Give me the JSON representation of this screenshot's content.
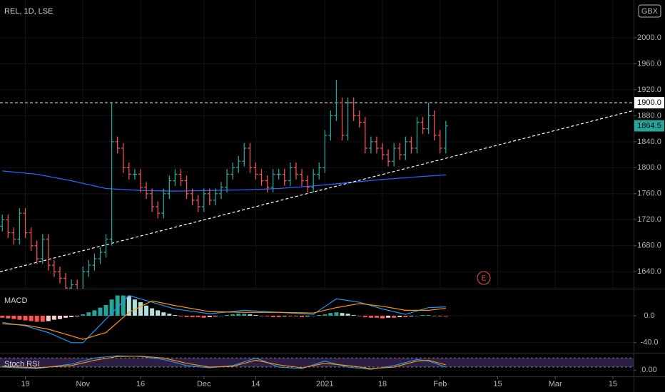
{
  "chart_data": [
    {
      "type": "ohlc",
      "title": "REL, 1D, LSE",
      "currency": "GBX",
      "x": [
        0,
        1,
        2,
        3,
        4,
        5,
        6,
        7,
        8,
        9,
        10,
        11,
        12,
        13,
        14,
        15,
        16,
        17,
        18,
        19,
        20,
        21,
        22,
        23,
        24,
        25,
        26,
        27,
        28,
        29,
        30,
        31,
        32,
        33,
        34,
        35,
        36,
        37,
        38,
        39,
        40,
        41,
        42,
        43,
        44,
        45,
        46,
        47,
        48,
        49,
        50,
        51,
        52,
        53,
        54,
        55,
        56,
        57,
        58,
        59,
        60,
        61,
        62,
        63,
        64,
        65,
        66,
        67,
        68,
        69,
        70,
        71,
        72,
        73,
        74,
        75,
        76,
        77
      ],
      "open": [
        1710,
        1720,
        1700,
        1690,
        1730,
        1700,
        1680,
        1660,
        1690,
        1650,
        1640,
        1630,
        1615,
        1620,
        1610,
        1640,
        1650,
        1660,
        1670,
        1690,
        1840,
        1830,
        1800,
        1790,
        1790,
        1770,
        1760,
        1740,
        1730,
        1760,
        1780,
        1790,
        1780,
        1760,
        1750,
        1740,
        1760,
        1750,
        1760,
        1770,
        1790,
        1800,
        1810,
        1830,
        1800,
        1790,
        1780,
        1770,
        1790,
        1790,
        1780,
        1800,
        1790,
        1780,
        1770,
        1790,
        1800,
        1850,
        1880,
        1900,
        1850,
        1900,
        1880,
        1870,
        1830,
        1840,
        1830,
        1820,
        1810,
        1830,
        1820,
        1840,
        1830,
        1870,
        1860,
        1880,
        1850,
        1830
      ],
      "high": [
        1728,
        1728,
        1708,
        1738,
        1738,
        1708,
        1688,
        1698,
        1698,
        1658,
        1648,
        1638,
        1628,
        1628,
        1648,
        1658,
        1668,
        1678,
        1698,
        1900,
        1848,
        1838,
        1808,
        1798,
        1798,
        1778,
        1768,
        1748,
        1768,
        1788,
        1798,
        1798,
        1788,
        1768,
        1758,
        1768,
        1768,
        1768,
        1778,
        1798,
        1808,
        1818,
        1838,
        1838,
        1808,
        1798,
        1788,
        1798,
        1798,
        1798,
        1808,
        1808,
        1798,
        1788,
        1798,
        1808,
        1858,
        1888,
        1935,
        1908,
        1908,
        1908,
        1888,
        1878,
        1848,
        1848,
        1838,
        1828,
        1838,
        1838,
        1848,
        1848,
        1878,
        1878,
        1900,
        1888,
        1858,
        1872
      ],
      "low": [
        1702,
        1692,
        1682,
        1682,
        1692,
        1672,
        1652,
        1652,
        1642,
        1632,
        1622,
        1607,
        1607,
        1602,
        1602,
        1632,
        1642,
        1652,
        1662,
        1680,
        1822,
        1792,
        1782,
        1782,
        1762,
        1752,
        1732,
        1722,
        1722,
        1752,
        1772,
        1772,
        1752,
        1742,
        1732,
        1732,
        1742,
        1742,
        1752,
        1762,
        1782,
        1792,
        1802,
        1792,
        1782,
        1772,
        1762,
        1762,
        1782,
        1772,
        1772,
        1782,
        1772,
        1762,
        1762,
        1782,
        1792,
        1842,
        1872,
        1842,
        1842,
        1872,
        1862,
        1822,
        1822,
        1822,
        1812,
        1802,
        1802,
        1812,
        1812,
        1822,
        1822,
        1852,
        1852,
        1842,
        1822,
        1822
      ],
      "close": [
        1720,
        1700,
        1690,
        1730,
        1700,
        1680,
        1660,
        1690,
        1650,
        1640,
        1630,
        1615,
        1620,
        1610,
        1640,
        1650,
        1660,
        1670,
        1690,
        1840,
        1830,
        1800,
        1790,
        1790,
        1770,
        1760,
        1740,
        1730,
        1760,
        1780,
        1790,
        1780,
        1760,
        1750,
        1740,
        1760,
        1750,
        1760,
        1770,
        1790,
        1800,
        1810,
        1830,
        1800,
        1790,
        1780,
        1770,
        1790,
        1790,
        1780,
        1800,
        1790,
        1780,
        1770,
        1790,
        1800,
        1850,
        1880,
        1900,
        1850,
        1900,
        1880,
        1870,
        1830,
        1840,
        1830,
        1820,
        1810,
        1830,
        1820,
        1840,
        1830,
        1870,
        1860,
        1880,
        1850,
        1830,
        1864.5
      ],
      "up_color": "#26a69a",
      "down_color": "#ef5350",
      "xlim": [
        -0.4,
        109.6
      ],
      "xticks": [
        {
          "value": 4,
          "label": "19"
        },
        {
          "value": 14,
          "label": "Nov"
        },
        {
          "value": 24,
          "label": "16"
        },
        {
          "value": 35,
          "label": "Dec"
        },
        {
          "value": 44,
          "label": "14"
        },
        {
          "value": 56,
          "label": "2021"
        },
        {
          "value": 66,
          "label": "18"
        },
        {
          "value": 76,
          "label": "Feb"
        },
        {
          "value": 86,
          "label": "15"
        },
        {
          "value": 96,
          "label": "Mar"
        },
        {
          "value": 106,
          "label": "15"
        }
      ],
      "ylim": [
        1614,
        2058
      ],
      "yticks": [
        {
          "value": 1640,
          "label": "1640.0"
        },
        {
          "value": 1680,
          "label": "1680.0"
        },
        {
          "value": 1720,
          "label": "1720.0"
        },
        {
          "value": 1760,
          "label": "1760.0"
        },
        {
          "value": 1800,
          "label": "1800.0"
        },
        {
          "value": 1840,
          "label": "1840.0"
        },
        {
          "value": 1880,
          "label": "1880.0"
        },
        {
          "value": 1920,
          "label": "1920.0"
        },
        {
          "value": 1960,
          "label": "1960.0"
        },
        {
          "value": 2000,
          "label": "2000.0"
        }
      ],
      "moving_average": {
        "color": "#2962ff",
        "x": [
          0,
          6,
          12,
          18,
          24,
          30,
          36,
          42,
          48,
          54,
          60,
          66,
          72,
          77
        ],
        "values": [
          1795,
          1790,
          1780,
          1768,
          1765,
          1764,
          1765,
          1766,
          1768,
          1772,
          1777,
          1782,
          1786,
          1789
        ]
      },
      "trendline": {
        "color": "#ffffff",
        "x": [
          -0.4,
          109.6
        ],
        "values": [
          1640,
          1888
        ]
      },
      "horizontal_line": {
        "value": 1900,
        "label": "1900.0",
        "color": "#ffffff"
      },
      "last_price": {
        "value": 1864.5,
        "label": "1864.5",
        "color": "#26a69a"
      },
      "annotation": "E"
    },
    {
      "type": "macd",
      "title": "MACD",
      "histogram": [
        -3,
        -4,
        -5,
        -6,
        -7,
        -8,
        -9,
        -9,
        -8,
        -6,
        -5,
        -3,
        -2,
        -1,
        2,
        5,
        8,
        12,
        16,
        24,
        30,
        30,
        29,
        24,
        20,
        15,
        11,
        8,
        5,
        3,
        1,
        -1,
        -2,
        -2,
        -2,
        -3,
        -2,
        -1,
        0,
        1,
        2,
        3,
        3,
        2,
        1,
        0,
        -1,
        -2,
        -2,
        -1,
        -1,
        -1,
        -2,
        -1,
        0,
        1,
        2,
        4,
        5,
        4,
        3,
        1,
        0,
        -2,
        -3,
        -3,
        -4,
        -3,
        -3,
        -2,
        -2,
        -1,
        0,
        1,
        1,
        0,
        -1,
        -1
      ],
      "histogram_colors": {
        "up_grow": "#26a69a",
        "up_fall": "#b2dfdb",
        "down_grow": "#ff5252",
        "down_fall": "#ffcdd2"
      },
      "macd": {
        "color": "#2196f3",
        "x": [
          0,
          4,
          8,
          12,
          14,
          18,
          22,
          26,
          30,
          36,
          42,
          48,
          54,
          58,
          62,
          66,
          70,
          74,
          77
        ],
        "values": [
          -10,
          -15,
          -25,
          -40,
          -40,
          -5,
          30,
          20,
          10,
          3,
          8,
          5,
          2,
          25,
          20,
          10,
          2,
          12,
          13
        ]
      },
      "signal": {
        "color": "#ff9800",
        "x": [
          0,
          4,
          8,
          12,
          14,
          18,
          22,
          26,
          30,
          36,
          42,
          48,
          54,
          58,
          62,
          66,
          70,
          74,
          77
        ],
        "values": [
          -12,
          -14,
          -20,
          -30,
          -35,
          -25,
          5,
          22,
          15,
          6,
          5,
          5,
          4,
          12,
          18,
          14,
          8,
          8,
          11
        ]
      },
      "ylim": [
        -55,
        38
      ],
      "yticks": [
        {
          "value": 0,
          "label": "0.0"
        },
        {
          "value": -40,
          "label": "-40.0"
        }
      ]
    },
    {
      "type": "stoch",
      "title": "Stoch RSI",
      "band": [
        20,
        80
      ],
      "band_color": "#7e57c2",
      "k": {
        "color": "#2196f3",
        "x": [
          0,
          6,
          12,
          16,
          20,
          24,
          28,
          32,
          36,
          40,
          44,
          48,
          52,
          56,
          60,
          64,
          68,
          72,
          74,
          77
        ],
        "values": [
          20,
          10,
          40,
          80,
          95,
          90,
          70,
          30,
          15,
          30,
          80,
          20,
          10,
          60,
          20,
          5,
          30,
          70,
          60,
          20
        ]
      },
      "d": {
        "color": "#ff9800",
        "x": [
          0,
          6,
          12,
          16,
          20,
          24,
          28,
          32,
          36,
          40,
          44,
          48,
          52,
          56,
          60,
          64,
          68,
          72,
          74,
          77
        ],
        "values": [
          25,
          15,
          30,
          65,
          90,
          92,
          80,
          45,
          20,
          25,
          65,
          35,
          15,
          45,
          30,
          10,
          20,
          60,
          65,
          35
        ]
      },
      "ylim": [
        -41,
        105
      ],
      "yticks": [
        {
          "value": 0,
          "label": "0.00"
        }
      ]
    }
  ]
}
